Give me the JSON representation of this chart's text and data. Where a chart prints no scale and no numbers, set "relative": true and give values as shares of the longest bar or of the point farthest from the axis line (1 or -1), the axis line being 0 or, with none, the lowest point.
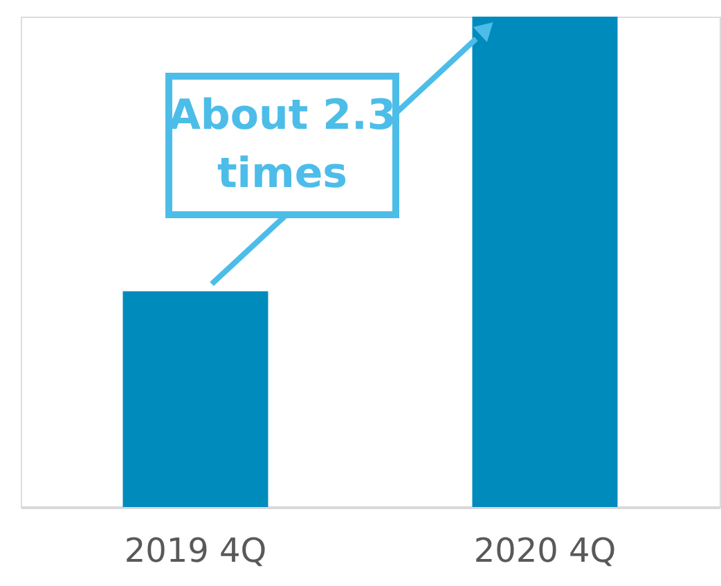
{
  "chart_data": {
    "type": "bar",
    "categories": [
      "2019 4Q",
      "2020 4Q"
    ],
    "values": [
      0.44,
      1
    ],
    "color": "#008bbd",
    "relative": true,
    "annotations": [
      "About 2.3 times"
    ]
  }
}
